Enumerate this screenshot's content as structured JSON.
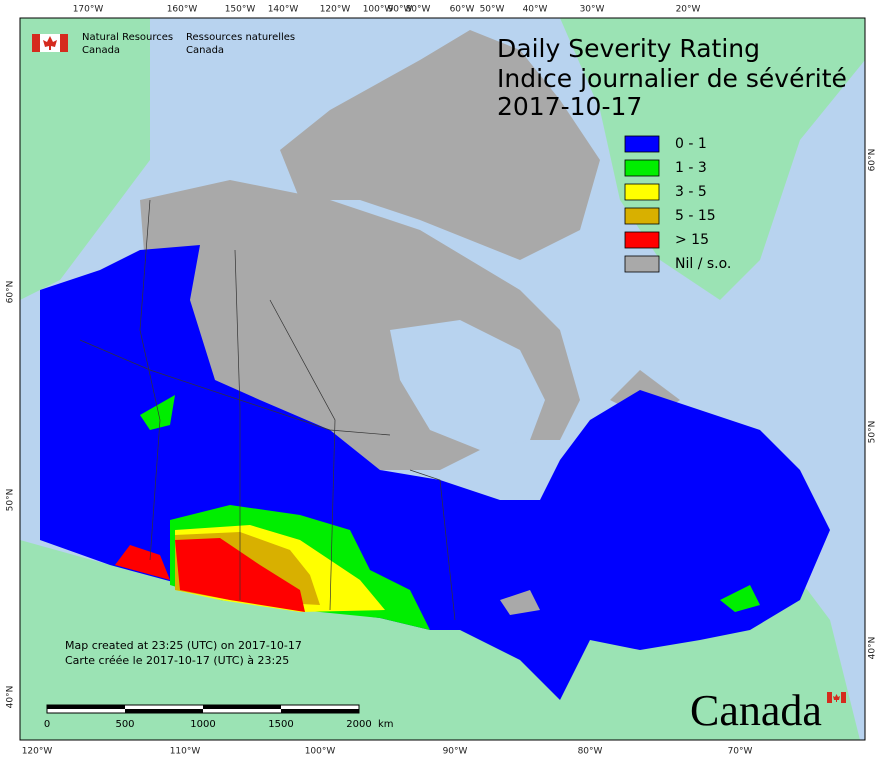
{
  "header": {
    "org_en": [
      "Natural Resources",
      "Canada"
    ],
    "org_fr": [
      "Ressources naturelles",
      "Canada"
    ]
  },
  "title": {
    "line1": "Daily Severity Rating",
    "line2": "Indice journalier de sévérité",
    "date": "2017-10-17"
  },
  "legend": [
    {
      "label": "0 - 1",
      "color": "#0000ff"
    },
    {
      "label": "1 - 3",
      "color": "#00ee00"
    },
    {
      "label": "3 - 5",
      "color": "#ffff00"
    },
    {
      "label": "5 - 15",
      "color": "#d8b000"
    },
    {
      "label": "> 15",
      "color": "#ff0000"
    },
    {
      "label": "Nil / s.o.",
      "color": "#a9a9a9"
    }
  ],
  "graticule": {
    "top": [
      "170°W",
      "160°W",
      "150°W",
      "140°W",
      "120°W",
      "100°W",
      "90°W",
      "80°W",
      "60°W",
      "50°W",
      "40°W",
      "30°W",
      "20°W"
    ],
    "bottom": [
      "120°W",
      "110°W",
      "100°W",
      "90°W",
      "80°W",
      "70°W"
    ],
    "left": [
      "60°N",
      "50°N",
      "40°N"
    ],
    "right": [
      "60°N",
      "50°N",
      "40°N"
    ]
  },
  "credits": [
    "Map created at 23:25 (UTC) on 2017-10-17",
    "Carte créée le 2017-10-17 (UTC) à 23:25"
  ],
  "scale_bar": {
    "ticks": [
      "0",
      "500",
      "1000",
      "1500",
      "2000"
    ],
    "unit": "km"
  },
  "wordmark": "Canada"
}
